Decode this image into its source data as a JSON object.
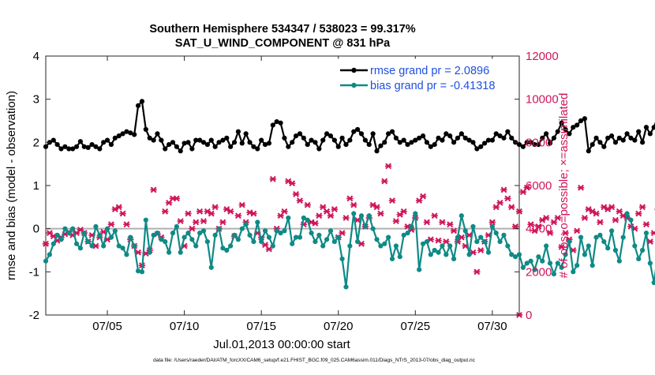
{
  "chart_data": {
    "type": "line",
    "title": "Southern Hemisphere 534347 / 538023 = 99.317%",
    "subtitle": "SAT_U_WIND_COMPONENT @ 831 hPa",
    "xlabel": "Jul.01,2013 00:00:00 start",
    "ylabel_left": "rmse and bias (model - observation)",
    "ylabel_right": "# of obs: o=possible; ×=assimilated",
    "footer": "data file: /Users/raeder/DAI/ATM_forcXX/CAM6_setup/f.e21.FHIST_BGC.f09_025.CAM6assim.011/Diags_NTrS_2013-07/obs_diag_output.nc",
    "xlim": [
      1.0,
      31.75
    ],
    "ylim_left": [
      -2,
      4
    ],
    "ylim_right": [
      0,
      12000
    ],
    "xticks": [
      5,
      10,
      15,
      20,
      25,
      30
    ],
    "xtick_labels": [
      "07/05",
      "07/10",
      "07/15",
      "07/20",
      "07/25",
      "07/30"
    ],
    "yticks_left": [
      -2,
      -1,
      0,
      1,
      2,
      3,
      4
    ],
    "yticks_left_labels": [
      "-2",
      "-1",
      "0",
      "1",
      "2",
      "3",
      "4"
    ],
    "yticks_right": [
      0,
      2000,
      4000,
      6000,
      8000,
      10000,
      12000
    ],
    "yticks_right_labels": [
      "0",
      "2000",
      "4000",
      "6000",
      "8000",
      "10000",
      "12000"
    ],
    "legend": {
      "position": "top-right",
      "rmse_label": "rmse grand pr = 2.0896",
      "bias_label": "bias grand pr = -0.41318"
    },
    "colors": {
      "rmse": "#000000",
      "bias": "#0f8a86",
      "obs": "#d0155a",
      "zero_line": "#b0b0b0"
    },
    "x_start": 1.0,
    "x_step": 0.25,
    "series": [
      {
        "name": "rmse",
        "values": [
          1.9,
          2.0,
          2.05,
          1.95,
          1.85,
          1.9,
          1.85,
          1.85,
          1.9,
          2.02,
          1.9,
          1.88,
          1.95,
          1.9,
          1.85,
          2.0,
          2.05,
          1.95,
          2.1,
          2.15,
          2.2,
          2.25,
          2.22,
          2.18,
          2.85,
          2.95,
          2.3,
          2.1,
          2.05,
          2.2,
          2.05,
          1.85,
          1.95,
          2.0,
          1.9,
          1.8,
          1.98,
          2.0,
          1.85,
          2.05,
          2.05,
          2.0,
          1.95,
          2.05,
          1.9,
          2.0,
          2.05,
          2.1,
          1.9,
          2.0,
          2.25,
          1.98,
          2.2,
          2.0,
          1.9,
          1.85,
          2.05,
          1.95,
          1.98,
          2.4,
          2.48,
          2.45,
          2.1,
          1.9,
          2.0,
          2.15,
          2.2,
          2.1,
          1.95,
          2.05,
          2.0,
          1.85,
          2.05,
          2.2,
          2.15,
          2.05,
          1.9,
          2.1,
          1.95,
          2.05,
          2.25,
          2.3,
          2.2,
          2.05,
          1.95,
          2.2,
          1.8,
          1.92,
          2.0,
          2.2,
          2.25,
          2.1,
          2.0,
          2.05,
          1.95,
          2.0,
          2.05,
          2.1,
          2.15,
          2.0,
          1.9,
          1.95,
          2.1,
          2.05,
          2.2,
          2.15,
          2.0,
          2.1,
          2.2,
          2.1,
          2.05,
          2.0,
          1.85,
          1.9,
          1.98,
          2.05,
          2.05,
          2.2,
          2.15,
          2.1,
          2.25,
          2.1,
          2.0,
          1.95,
          1.9,
          2.0,
          2.0,
          1.95,
          1.95,
          2.1,
          2.2,
          1.98,
          2.1,
          2.25,
          2.45,
          2.3,
          2.2,
          2.35,
          2.4,
          2.5,
          2.55,
          1.8,
          1.95,
          2.1,
          2.0,
          1.9,
          2.1,
          2.15,
          2.0,
          2.1,
          2.05,
          2.2,
          2.1,
          2.05,
          2.25,
          2.0,
          2.35,
          2.2,
          2.35,
          2.6,
          2.2,
          2.25,
          2.2
        ]
      },
      {
        "name": "bias",
        "values": [
          -0.75,
          -0.6,
          -0.35,
          -0.15,
          -0.25,
          0.0,
          -0.1,
          0.0,
          -0.35,
          -0.45,
          -0.1,
          -0.3,
          -0.4,
          0.05,
          -0.15,
          -0.4,
          0.0,
          -0.2,
          -0.05,
          -0.4,
          -0.45,
          -0.6,
          -0.2,
          -0.4,
          -0.98,
          -1.0,
          0.2,
          -0.55,
          -0.15,
          -0.1,
          -0.25,
          -0.3,
          -0.55,
          -0.1,
          0.05,
          -0.55,
          -0.2,
          -0.1,
          -0.25,
          -0.4,
          -0.1,
          -0.05,
          -0.3,
          -0.9,
          -0.15,
          0.0,
          -0.45,
          -0.5,
          -0.4,
          -0.15,
          -0.25,
          0.0,
          0.1,
          -0.15,
          -0.3,
          0.15,
          -0.3,
          -0.05,
          -0.2,
          -0.4,
          -0.05,
          -0.1,
          -0.05,
          0.25,
          -0.35,
          -0.2,
          -0.2,
          0.25,
          0.2,
          -0.1,
          -0.3,
          -0.15,
          -0.4,
          -0.25,
          -0.05,
          -0.3,
          -0.2,
          -0.7,
          -1.35,
          -0.4,
          0.35,
          -0.3,
          0.3,
          0.05,
          0.3,
          0.0,
          -0.25,
          -0.4,
          -0.35,
          -0.2,
          -0.7,
          -0.4,
          -0.65,
          -0.15,
          -0.1,
          0.05,
          0.35,
          -0.95,
          -0.35,
          -0.3,
          -0.6,
          -0.5,
          -0.55,
          -0.4,
          -0.6,
          -0.4,
          -0.7,
          -0.2,
          0.3,
          -0.05,
          -0.6,
          0.05,
          -0.3,
          -0.2,
          -0.3,
          -0.55,
          0.05,
          -0.1,
          -0.3,
          -0.15,
          -0.4,
          -0.6,
          -0.65,
          -0.6,
          -0.9,
          -0.8,
          -0.75,
          -0.95,
          -0.65,
          -0.75,
          -0.4,
          -0.8,
          -1.05,
          -0.8,
          -0.9,
          -0.6,
          -0.3,
          -1.0,
          -0.85,
          -0.2,
          -0.6,
          -0.4,
          -0.85,
          -0.2,
          -0.15,
          -0.3,
          -0.45,
          -0.05,
          -0.5,
          -0.75,
          -0.2,
          0.35,
          0.2,
          -0.4,
          -0.7,
          -0.5,
          -0.1,
          -0.8,
          -1.25,
          -0.6,
          -1.0
        ]
      },
      {
        "name": "obs_assimilated",
        "values": [
          3300,
          3800,
          3650,
          3450,
          3600,
          3750,
          3850,
          3700,
          3800,
          3950,
          3800,
          3400,
          3700,
          3200,
          3600,
          3850,
          3500,
          4200,
          4900,
          5000,
          4700,
          4200,
          3500,
          3200,
          2900,
          2300,
          2850,
          3000,
          5800,
          3750,
          3600,
          4800,
          5200,
          5400,
          5400,
          4350,
          3200,
          4700,
          4000,
          4300,
          4800,
          4350,
          4800,
          4700,
          5000,
          4000,
          4300,
          4900,
          4800,
          3650,
          4600,
          5100,
          4300,
          4750,
          4700,
          3800,
          3600,
          3250,
          3050,
          6300,
          4000,
          4600,
          4800,
          6200,
          6100,
          5600,
          5300,
          4200,
          5100,
          4300,
          4250,
          4600,
          5000,
          4800,
          4600,
          4900,
          3600,
          3800,
          4500,
          5400,
          5100,
          4400,
          3300,
          4100,
          4500,
          5100,
          5000,
          4700,
          6200,
          6900,
          5300,
          4350,
          4650,
          4800,
          4100,
          3950,
          4500,
          5300,
          5500,
          4300,
          3500,
          4600,
          3450,
          4300,
          3400,
          4200,
          3900,
          3400,
          3600,
          3200,
          3700,
          2900,
          2000,
          3000,
          3400,
          3700,
          4300,
          5000,
          5200,
          5800,
          5400,
          5000,
          4100,
          4800,
          5700,
          5900,
          4200,
          3900,
          4100,
          4400,
          4500,
          3800,
          4300,
          4500,
          3150,
          3800,
          3500,
          3000,
          3900,
          5900,
          4500,
          4900,
          4800,
          4700,
          4300,
          5000,
          4900,
          5000,
          4400,
          4800,
          4600,
          4500,
          4100,
          4000,
          4700,
          5000,
          4200,
          3400,
          3800,
          4900,
          4700,
          4200,
          3600,
          4600,
          4900
        ]
      }
    ]
  }
}
